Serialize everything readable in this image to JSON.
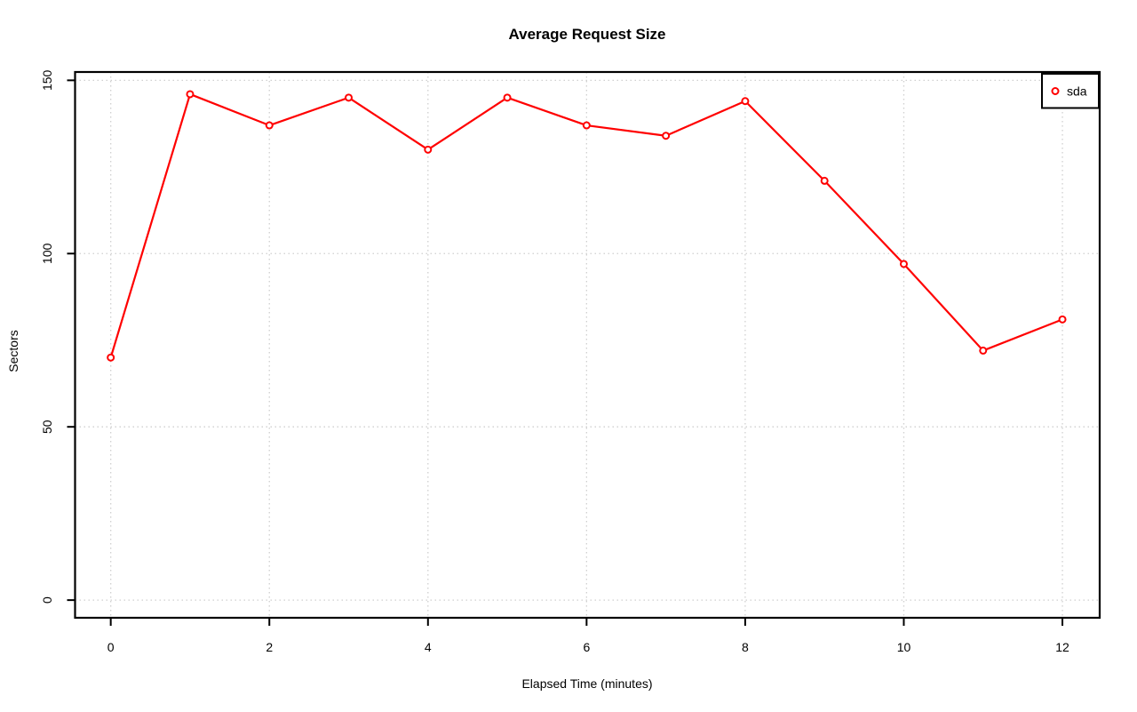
{
  "title": "Average Request Size",
  "chart_data": {
    "type": "line",
    "title": "Average Request Size",
    "xlabel": "Elapsed Time (minutes)",
    "ylabel": "Sectors",
    "x": [
      0,
      1,
      2,
      3,
      4,
      5,
      6,
      7,
      8,
      9,
      10,
      11,
      12
    ],
    "series": [
      {
        "name": "sda",
        "color": "#FF0000",
        "marker": "open-circle",
        "values": [
          70,
          146,
          137,
          145,
          130,
          145,
          137,
          134,
          144,
          121,
          97,
          72,
          81
        ]
      }
    ],
    "x_ticks": [
      0,
      2,
      4,
      6,
      8,
      10,
      12
    ],
    "y_ticks": [
      0,
      50,
      100,
      150
    ],
    "xlim": [
      -0.45,
      12.47
    ],
    "ylim": [
      -5.1,
      152.4
    ],
    "grid": true,
    "grid_style": "dotted",
    "legend_position": "top-right",
    "colors": {
      "line": "#FF0000",
      "grid": "#CFCFCF",
      "axis": "#000000",
      "background": "#FFFFFF",
      "marker_fill": "#FFFFFF"
    }
  }
}
